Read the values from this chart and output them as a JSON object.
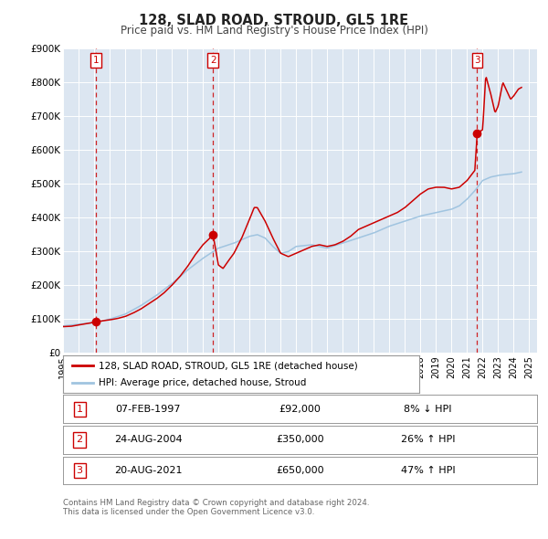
{
  "title": "128, SLAD ROAD, STROUD, GL5 1RE",
  "subtitle": "Price paid vs. HM Land Registry's House Price Index (HPI)",
  "plot_bg_color": "#dce6f1",
  "outer_bg_color": "#ffffff",
  "ylim": [
    0,
    900000
  ],
  "xlim_start": 1995.0,
  "xlim_end": 2025.5,
  "yticks": [
    0,
    100000,
    200000,
    300000,
    400000,
    500000,
    600000,
    700000,
    800000,
    900000
  ],
  "ytick_labels": [
    "£0",
    "£100K",
    "£200K",
    "£300K",
    "£400K",
    "£500K",
    "£600K",
    "£700K",
    "£800K",
    "£900K"
  ],
  "xtick_years": [
    1995,
    1996,
    1997,
    1998,
    1999,
    2000,
    2001,
    2002,
    2003,
    2004,
    2005,
    2006,
    2007,
    2008,
    2009,
    2010,
    2011,
    2012,
    2013,
    2014,
    2015,
    2016,
    2017,
    2018,
    2019,
    2020,
    2021,
    2022,
    2023,
    2024,
    2025
  ],
  "sale_color": "#cc0000",
  "hpi_color": "#a0c4e0",
  "vline_color": "#cc0000",
  "sales": [
    {
      "x": 1997.1,
      "price": 92000,
      "label": "1"
    },
    {
      "x": 2004.65,
      "price": 350000,
      "label": "2"
    },
    {
      "x": 2021.65,
      "price": 650000,
      "label": "3"
    }
  ],
  "legend_sale_label": "128, SLAD ROAD, STROUD, GL5 1RE (detached house)",
  "legend_hpi_label": "HPI: Average price, detached house, Stroud",
  "table_rows": [
    {
      "num": "1",
      "date": "07-FEB-1997",
      "price": "£92,000",
      "hpi": "8% ↓ HPI"
    },
    {
      "num": "2",
      "date": "24-AUG-2004",
      "price": "£350,000",
      "hpi": "26% ↑ HPI"
    },
    {
      "num": "3",
      "date": "20-AUG-2021",
      "price": "£650,000",
      "hpi": "47% ↑ HPI"
    }
  ],
  "footnote1": "Contains HM Land Registry data © Crown copyright and database right 2024.",
  "footnote2": "This data is licensed under the Open Government Licence v3.0."
}
